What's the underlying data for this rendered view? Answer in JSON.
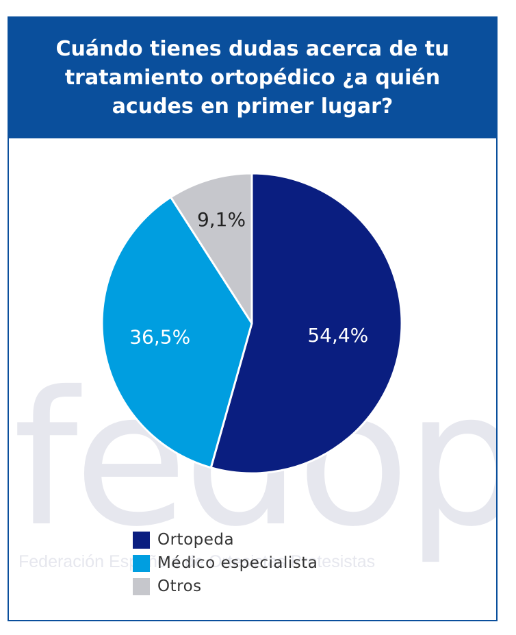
{
  "watermark": {
    "word": "fedop",
    "subtitle": "Federación Española de Ortesistas Protesistas"
  },
  "chart_data": {
    "type": "pie",
    "title": "Cuándo tienes dudas acerca de tu tratamiento ortopédico ¿a quién acudes en primer lugar?",
    "categories": [
      "Ortopeda",
      "Médico especialista",
      "Otros"
    ],
    "values": [
      54.4,
      36.5,
      9.1
    ],
    "labels": [
      "54,4%",
      "36,5%",
      "9,1%"
    ],
    "colors": [
      "#0a1e80",
      "#009ee0",
      "#c6c7cc"
    ],
    "label_colors": [
      "#ffffff",
      "#ffffff",
      "#222222"
    ],
    "legend_position": "bottom"
  }
}
